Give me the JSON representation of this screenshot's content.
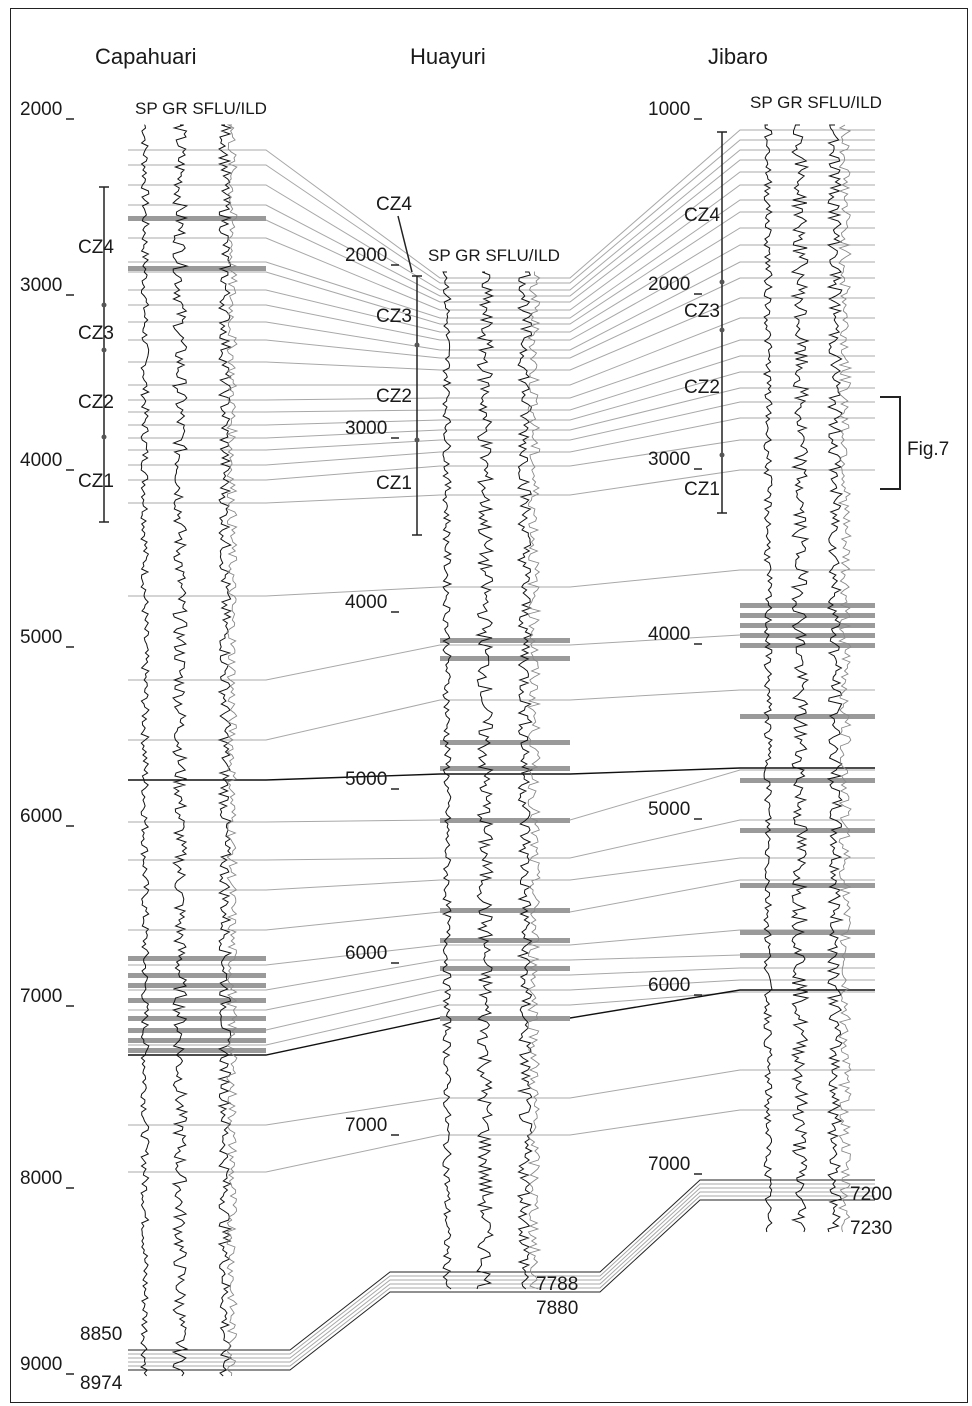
{
  "wells": [
    {
      "name": "Capahuari",
      "track_header": "SP GR SFLU/ILD",
      "depth_labels": [
        "2000",
        "3000",
        "4000",
        "5000",
        "6000",
        "7000",
        "8000",
        "9000"
      ],
      "bottom_labels": [
        "8850",
        "8974"
      ]
    },
    {
      "name": "Huayuri",
      "track_header": "SP GR SFLU/ILD",
      "depth_labels": [
        "2000",
        "3000",
        "4000",
        "5000",
        "6000",
        "7000"
      ],
      "bottom_labels": [
        "7788",
        "7880"
      ]
    },
    {
      "name": "Jibaro",
      "track_header": "SP GR SFLU/ILD",
      "depth_labels": [
        "1000",
        "2000",
        "3000",
        "4000",
        "5000",
        "6000",
        "7000"
      ],
      "bottom_labels": [
        "7200",
        "7230"
      ]
    }
  ],
  "zones": [
    "CZ4",
    "CZ3",
    "CZ2",
    "CZ1"
  ],
  "figure_ref": "Fig.7",
  "colors": {
    "log_curve": "#111111",
    "correlation_line": "#a8a8a8",
    "marker_bar": "#9a9a9a",
    "frame": "#222222"
  }
}
